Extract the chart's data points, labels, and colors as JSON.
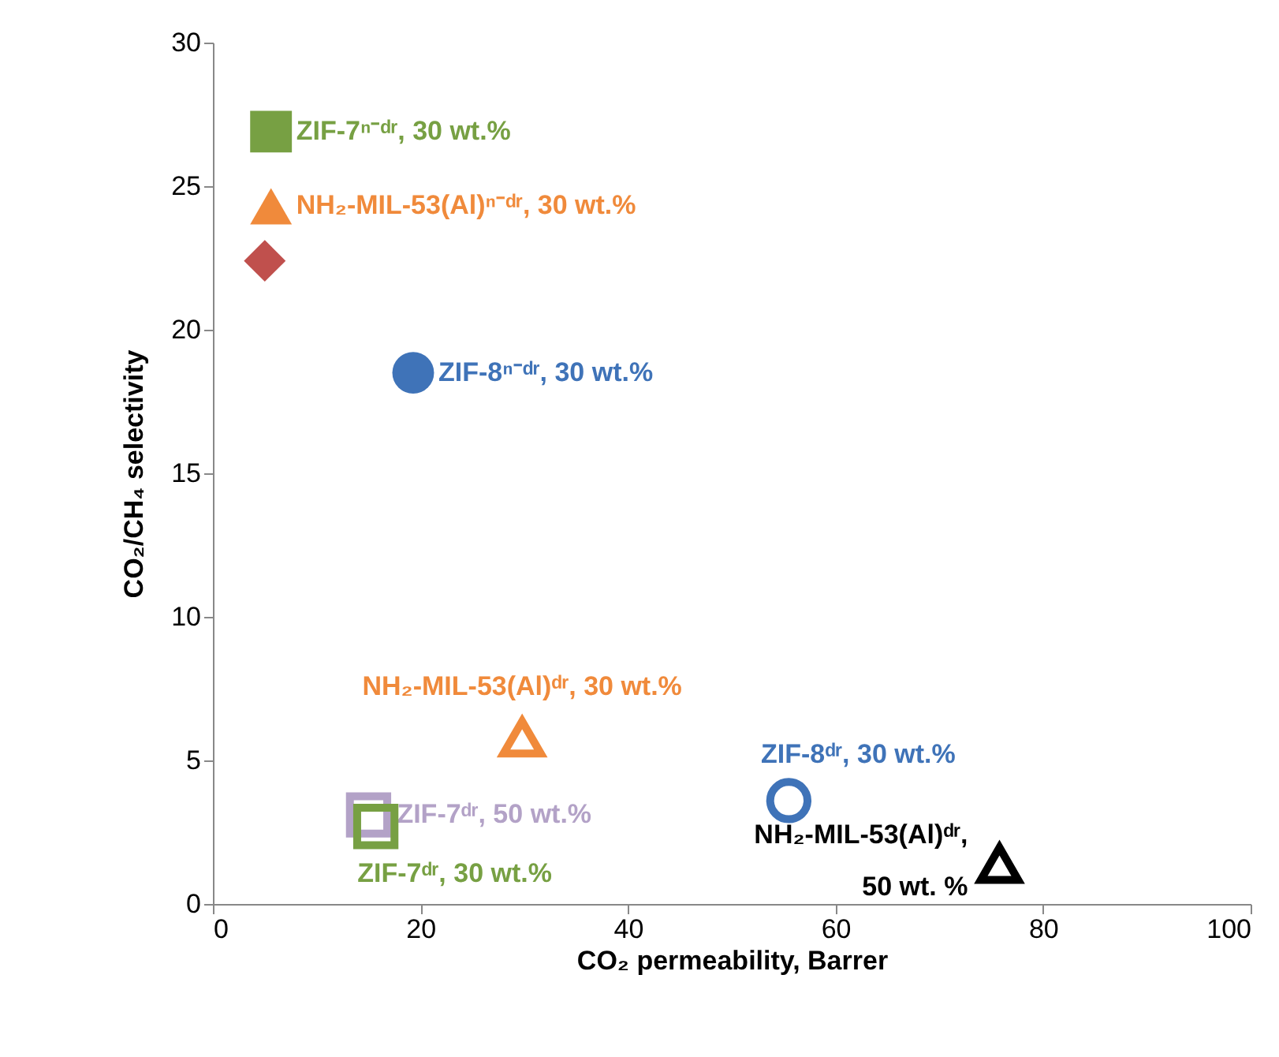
{
  "chart_data": {
    "type": "scatter",
    "xlabel": "CO₂ permeability, Barrer",
    "ylabel": "CO₂/CH₄ selectivity",
    "xlim": [
      0,
      100
    ],
    "xticks": [
      0,
      20,
      40,
      60,
      80,
      100
    ],
    "ylim": [
      0,
      30
    ],
    "yticks": [
      0,
      5,
      10,
      15,
      20,
      25,
      30
    ],
    "grid": false,
    "series": [
      {
        "name": "ZIF-7ⁿ⁻ᵈʳ, 30 wt.%",
        "color": "#77a043",
        "marker": "square",
        "x": [
          5.6
        ],
        "values": [
          26.9
        ]
      },
      {
        "name": "NH₂-MIL-53(Al)ⁿ⁻ᵈʳ, 30 wt.%",
        "color": "#f08a3b",
        "marker": "triangle",
        "x": [
          5.6
        ],
        "values": [
          24.3
        ]
      },
      {
        "color": "#c0504d",
        "marker": "diamond",
        "x": [
          5.0
        ],
        "values": [
          22.4
        ]
      },
      {
        "name": "ZIF-8ⁿ⁻ᵈʳ, 30 wt.%",
        "color": "#3f73b8",
        "marker": "circle",
        "x": [
          19.3
        ],
        "values": [
          18.5
        ]
      },
      {
        "name": "NH₂-MIL-53(Al)ᵈʳ, 30 wt.%",
        "color": "#f08a3b",
        "marker": "triangle",
        "x": [
          29.8
        ],
        "values": [
          5.8
        ]
      },
      {
        "name": "ZIF-8ᵈʳ, 30 wt.%",
        "color": "#3f73b8",
        "marker": "circle",
        "x": [
          55.5
        ],
        "values": [
          3.6
        ]
      },
      {
        "name": "ZIF-7ᵈʳ, 50 wt.%",
        "color": "#b3a2c7",
        "marker": "square",
        "x": [
          15.0
        ],
        "values": [
          3.1
        ]
      },
      {
        "name": "ZIF-7ᵈʳ, 30 wt.%",
        "color": "#77a043",
        "marker": "square",
        "x": [
          15.7
        ],
        "values": [
          2.7
        ]
      },
      {
        "name": "NH₂-MIL-53(Al)ᵈʳ, 50 wt. %",
        "color": "#000000",
        "marker": "triangle",
        "x": [
          75.8
        ],
        "values": [
          1.4
        ]
      }
    ]
  }
}
